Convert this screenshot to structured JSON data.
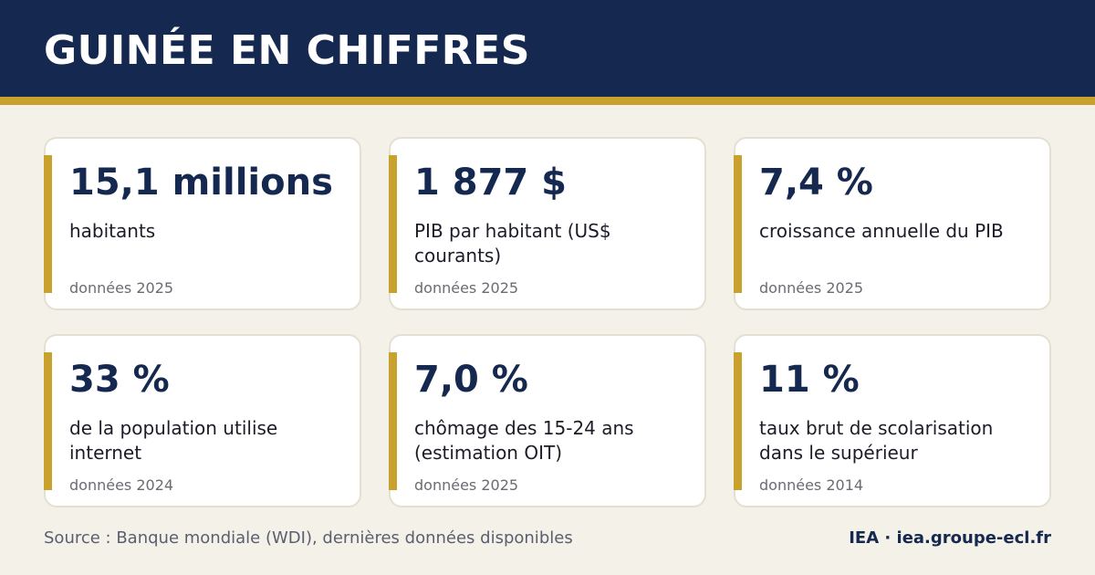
{
  "header": {
    "title": "GUINÉE EN CHIFFRES"
  },
  "cards": [
    {
      "value": "15,1 millions",
      "label": "habitants",
      "year": "données 2025"
    },
    {
      "value": "1 877 $",
      "label": "PIB par habitant (US$ courants)",
      "year": "données 2025"
    },
    {
      "value": "7,4 %",
      "label": "croissance annuelle du PIB",
      "year": "données 2025"
    },
    {
      "value": "33 %",
      "label": "de la population utilise internet",
      "year": "données 2024"
    },
    {
      "value": "7,0 %",
      "label": "chômage des 15-24 ans (estimation OIT)",
      "year": "données 2025"
    },
    {
      "value": "11 %",
      "label": "taux brut de scolarisation dans le supérieur",
      "year": "données 2014"
    }
  ],
  "footer": {
    "source": "Source : Banque mondiale (WDI), dernières données disponibles",
    "brand": "IEA · iea.groupe-ecl.fr"
  },
  "colors": {
    "navy": "#152850",
    "gold": "#c9a12d",
    "background": "#f4f1e9"
  }
}
